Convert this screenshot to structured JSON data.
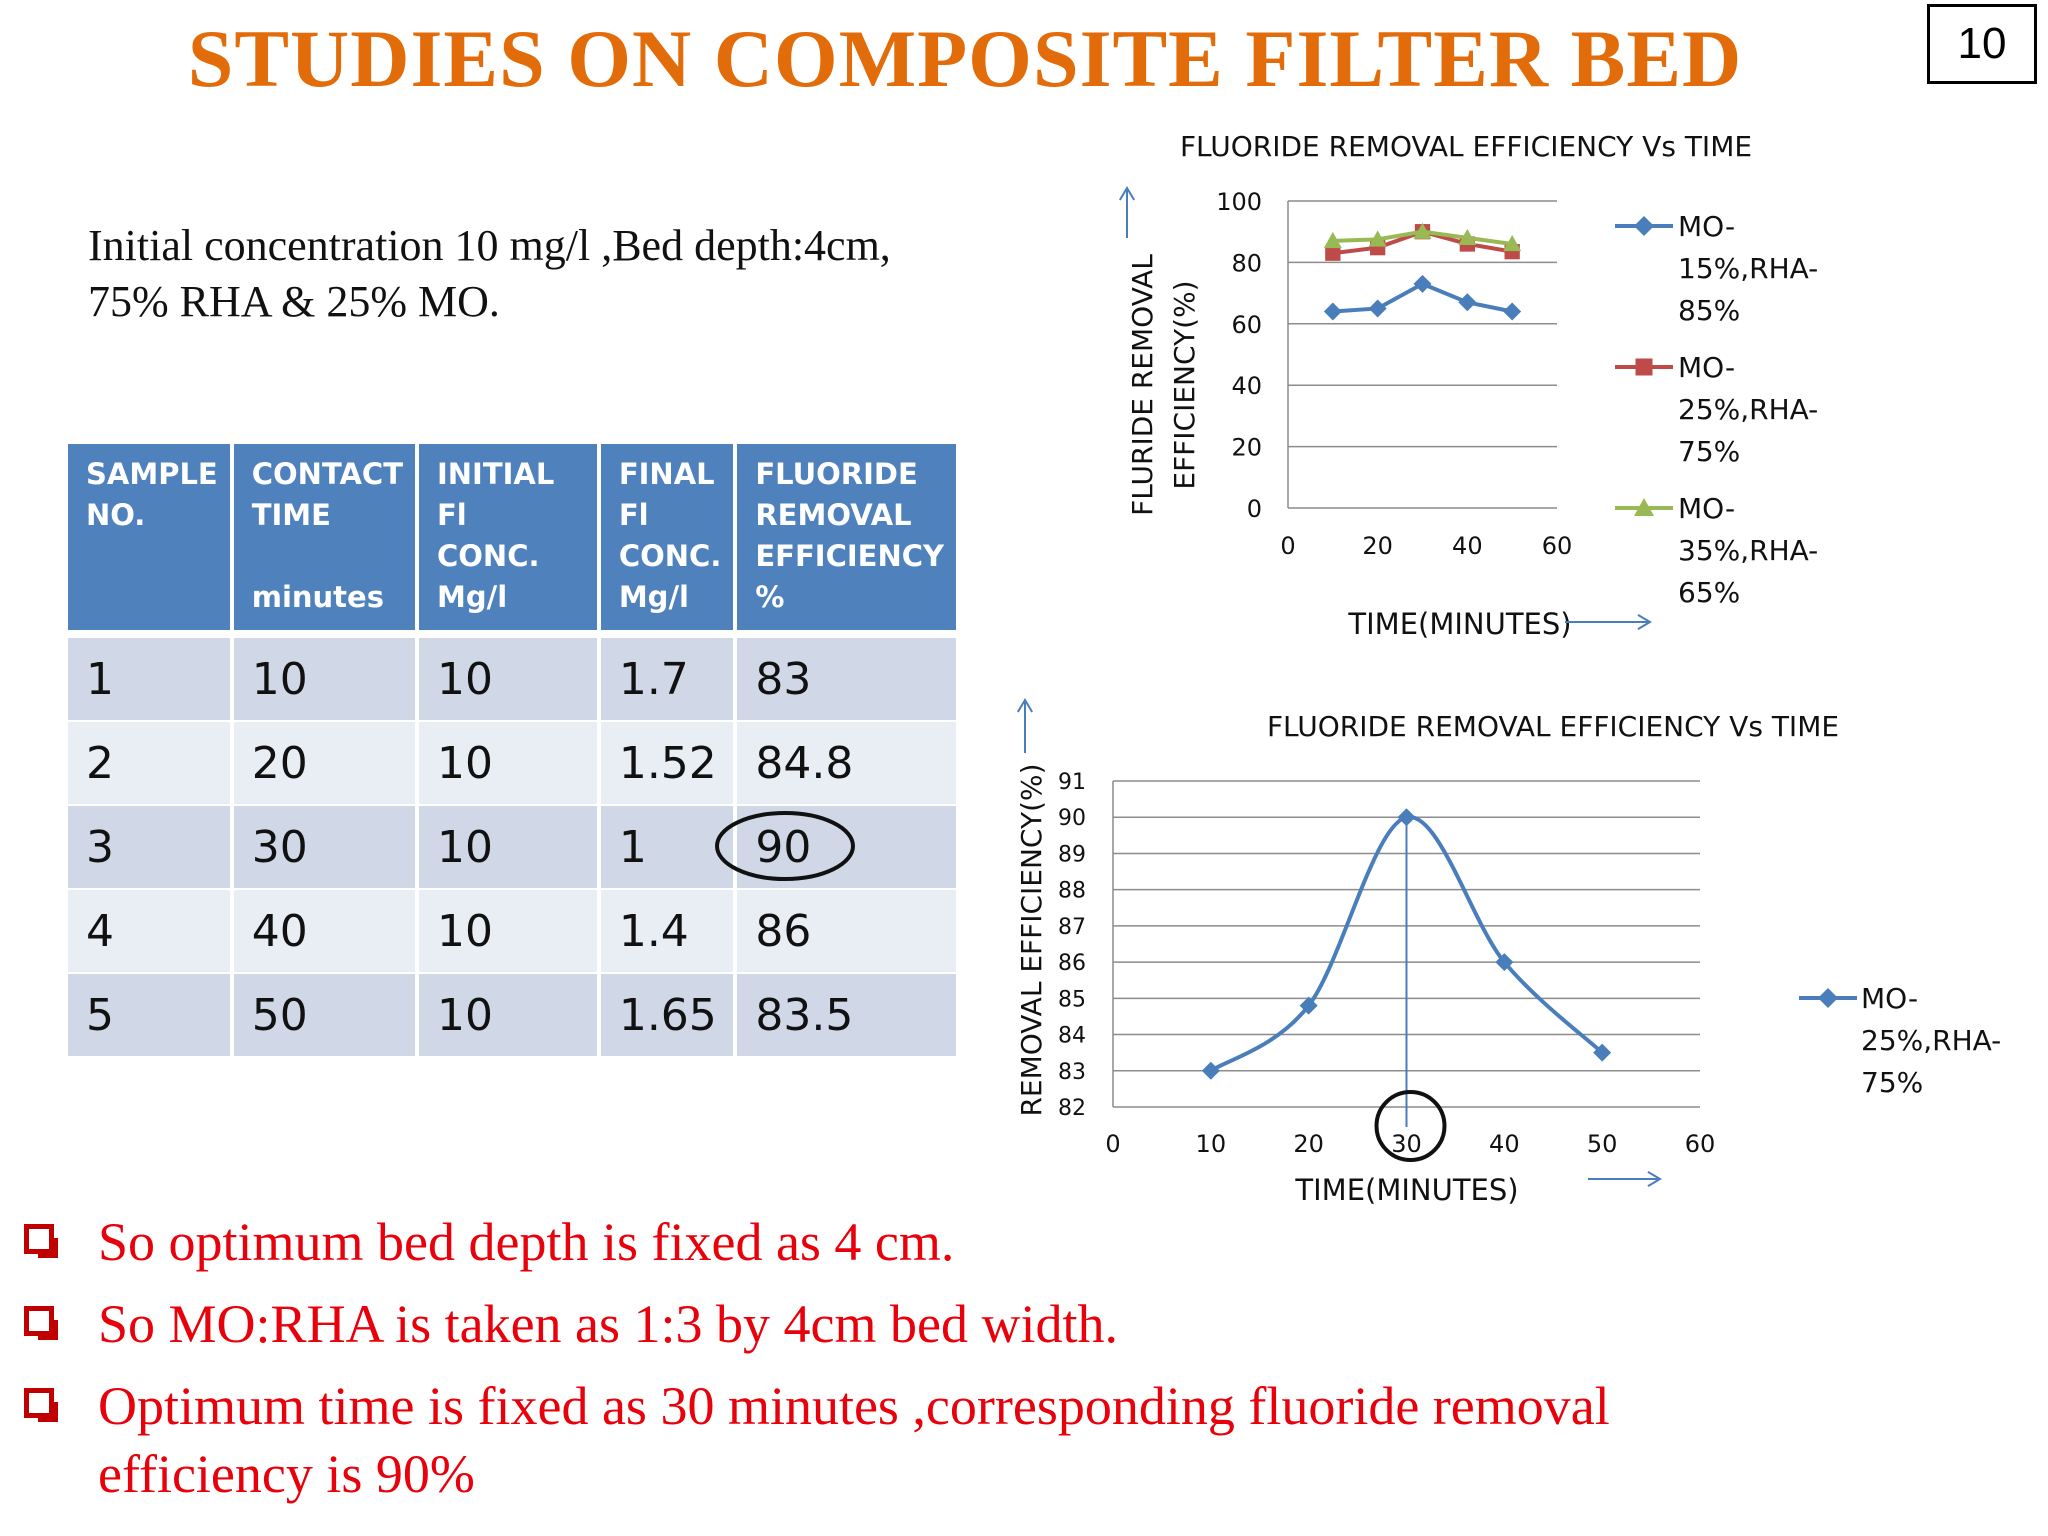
{
  "slide": {
    "title": "STUDIES ON COMPOSITE FILTER BED",
    "number": "10",
    "intro_line1": "Initial concentration 10 mg/l ,Bed depth:4cm,",
    "intro_line2": "75% RHA & 25% MO."
  },
  "table": {
    "headers": [
      "SAMPLE\nNO.",
      "CONTACT\nTIME\n\nminutes",
      "INITIAL Fl\nCONC.\nMg/l",
      "FINAL\nFl\nCONC.\nMg/l",
      "FLUORIDE\nREMOVAL\nEFFICIENCY\n %"
    ],
    "rows": [
      [
        "1",
        "10",
        "10",
        "1.7",
        "83"
      ],
      [
        "2",
        "20",
        "10",
        "1.52",
        "84.8"
      ],
      [
        "3",
        "30",
        "10",
        "1",
        "90"
      ],
      [
        "4",
        "40",
        "10",
        "1.4",
        "86"
      ],
      [
        "5",
        "50",
        "10",
        "1.65",
        "83.5"
      ]
    ]
  },
  "bullets": [
    "So optimum bed depth is fixed as 4 cm.",
    "So MO:RHA is taken as 1:3 by 4cm bed width.",
    "Optimum time is fixed as 30 minutes ,corresponding  fluoride removal efficiency is 90%"
  ],
  "colors": {
    "title": "#e36c0a",
    "bullet_text": "#e8000b",
    "header_bg": "#4f81bd",
    "series_blue": "#4a7ebb",
    "series_red": "#be4b48",
    "series_green": "#98b954"
  },
  "chart_data": [
    {
      "type": "line",
      "title": "FLUORIDE REMOVAL EFFICIENCY Vs TIME",
      "xlabel": "TIME(MINUTES)",
      "ylabel_line1": "FLURIDE REMOVAL",
      "ylabel_line2": "EFFICIENCY(%)",
      "xlim": [
        0,
        60
      ],
      "ylim": [
        0,
        100
      ],
      "xticks": [
        "0",
        "20",
        "40",
        "60"
      ],
      "yticks": [
        "0",
        "20",
        "40",
        "60",
        "80",
        "100"
      ],
      "grid": true,
      "legend_position": "right",
      "x": [
        10,
        20,
        30,
        40,
        50
      ],
      "series": [
        {
          "name": "MO-15%,RHA-85%",
          "legend_lines": [
            "MO-",
            "15%,RHA-",
            "85%"
          ],
          "marker": "diamond",
          "color": "#4a7ebb",
          "values": [
            64,
            65,
            73,
            67,
            64
          ]
        },
        {
          "name": "MO-25%,RHA-75%",
          "legend_lines": [
            "MO-",
            "25%,RHA-",
            "75%"
          ],
          "marker": "square",
          "color": "#be4b48",
          "values": [
            83,
            84.8,
            90,
            86,
            83.5
          ]
        },
        {
          "name": "MO-35%,RHA-65%",
          "legend_lines": [
            "MO-",
            "35%,RHA-",
            "65%"
          ],
          "marker": "triangle",
          "color": "#98b954",
          "values": [
            87,
            87.5,
            90,
            88,
            86
          ]
        }
      ]
    },
    {
      "type": "line",
      "title": "FLUORIDE REMOVAL EFFICIENCY Vs TIME",
      "xlabel": "TIME(MINUTES)",
      "ylabel": "REMOVAL EFFICIENCY(%)",
      "xlim": [
        0,
        60
      ],
      "ylim": [
        82,
        91
      ],
      "xticks": [
        "0",
        "10",
        "20",
        "30",
        "40",
        "50",
        "60"
      ],
      "yticks": [
        "82",
        "83",
        "84",
        "85",
        "86",
        "87",
        "88",
        "89",
        "90",
        "91"
      ],
      "grid": true,
      "legend_position": "right",
      "smooth": true,
      "x": [
        10,
        20,
        30,
        40,
        50
      ],
      "series": [
        {
          "name": "MO-25%,RHA-75%",
          "legend_lines": [
            "MO-",
            "25%,RHA-",
            "75%"
          ],
          "marker": "diamond",
          "color": "#4a7ebb",
          "values": [
            83,
            84.8,
            90,
            86,
            83.5
          ]
        }
      ],
      "annotations": {
        "highlight_x": 30,
        "highlight_y": 90
      }
    }
  ]
}
